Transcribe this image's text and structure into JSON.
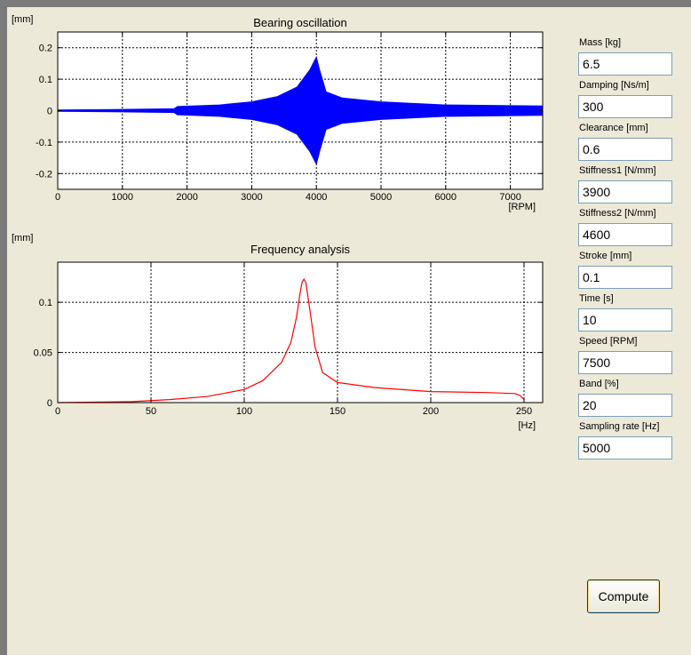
{
  "params": [
    {
      "label": "Mass [kg]",
      "value": "6.5"
    },
    {
      "label": "Damping [Ns/m]",
      "value": "300"
    },
    {
      "label": "Clearance [mm]",
      "value": "0.6"
    },
    {
      "label": "Stiffness1 [N/mm]",
      "value": "3900"
    },
    {
      "label": "Stiffness2 [N/mm]",
      "value": "4600"
    },
    {
      "label": "Stroke [mm]",
      "value": "0.1"
    },
    {
      "label": "Time [s]",
      "value": "10"
    },
    {
      "label": "Speed [RPM]",
      "value": "7500"
    },
    {
      "label": "Band [%]",
      "value": "20"
    },
    {
      "label": "Sampling rate [Hz]",
      "value": "5000"
    }
  ],
  "compute_label": "Compute",
  "colors": {
    "oscillation": "#0000ff",
    "frequency": "#ff0000",
    "background": "#ece9d8"
  },
  "chart_data": [
    {
      "type": "area",
      "title": "Bearing oscillation",
      "ylabel": "[mm]",
      "xlabel": "[RPM]",
      "xlim": [
        0,
        7500
      ],
      "ylim": [
        -0.25,
        0.25
      ],
      "xticks": [
        0,
        1000,
        2000,
        3000,
        4000,
        5000,
        6000,
        7000
      ],
      "yticks": [
        -0.2,
        -0.1,
        0,
        0.1,
        0.2
      ],
      "ytick_labels": [
        "-0.2",
        "-0.1",
        "0",
        "0.1",
        "0.2"
      ],
      "grid": true,
      "x": [
        0,
        1000,
        1800,
        1850,
        2500,
        3000,
        3400,
        3700,
        3900,
        4000,
        4050,
        4150,
        4400,
        5000,
        6000,
        7500
      ],
      "amplitude": [
        0.002,
        0.004,
        0.006,
        0.013,
        0.018,
        0.028,
        0.045,
        0.075,
        0.13,
        0.17,
        0.13,
        0.06,
        0.04,
        0.028,
        0.018,
        0.015
      ]
    },
    {
      "type": "line",
      "title": "Frequency analysis",
      "ylabel": "[mm]",
      "xlabel": "[Hz]",
      "xlim": [
        0,
        260
      ],
      "ylim": [
        0,
        0.14
      ],
      "xticks": [
        0,
        50,
        100,
        150,
        200,
        250
      ],
      "yticks": [
        0,
        0.05,
        0.1
      ],
      "ytick_labels": [
        "0",
        "0.05",
        "0.1"
      ],
      "grid": true,
      "x": [
        0,
        40,
        60,
        80,
        100,
        110,
        120,
        125,
        128,
        130,
        131,
        132,
        133,
        135,
        138,
        142,
        150,
        170,
        200,
        230,
        245,
        248,
        250
      ],
      "y": [
        0,
        0.001,
        0.003,
        0.006,
        0.013,
        0.022,
        0.04,
        0.06,
        0.085,
        0.11,
        0.12,
        0.123,
        0.12,
        0.095,
        0.055,
        0.03,
        0.02,
        0.015,
        0.011,
        0.01,
        0.009,
        0.007,
        0.003
      ]
    }
  ]
}
